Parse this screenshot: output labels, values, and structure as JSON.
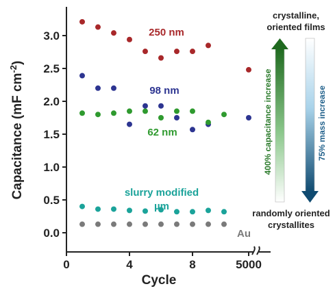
{
  "chart_data": {
    "type": "scatter",
    "xlabel": "Cycle",
    "ylabel": "Capacitance (mF cm",
    "ylabel_sup": "-2",
    "ylabel_close": ")",
    "x_ticks": [
      "0",
      "4",
      "8",
      "5000"
    ],
    "y_ticks": [
      "0.0",
      "0.5",
      "1.0",
      "1.5",
      "2.0",
      "2.5",
      "3.0"
    ],
    "xlim": [
      0,
      10
    ],
    "ylim": [
      0,
      3.3
    ],
    "series": [
      {
        "label_lines": [
          "250 nm"
        ],
        "color": "#a8282a",
        "x": [
          1,
          2,
          3,
          4,
          5,
          6,
          7,
          8,
          9
        ],
        "y": [
          3.21,
          3.13,
          3.04,
          2.94,
          2.76,
          2.66,
          2.76,
          2.76,
          2.85
        ],
        "x_5000": 2.48
      },
      {
        "label_lines": [
          "98 nm"
        ],
        "color": "#2d3591",
        "x": [
          1,
          2,
          3,
          4,
          5,
          6,
          7,
          8,
          9
        ],
        "y": [
          2.39,
          2.2,
          2.2,
          1.65,
          1.93,
          1.93,
          1.75,
          1.57,
          1.65
        ],
        "x_5000": 1.75
      },
      {
        "label_lines": [
          "62 nm"
        ],
        "color": "#2f9a2f",
        "x": [
          1,
          2,
          3,
          4,
          5,
          6,
          7,
          8,
          9,
          10
        ],
        "y": [
          1.82,
          1.8,
          1.82,
          1.85,
          1.85,
          1.75,
          1.85,
          1.85,
          1.68,
          1.8
        ],
        "x_5000": null
      },
      {
        "label_lines": [
          "slurry modified",
          "µm"
        ],
        "color": "#1ba39a",
        "x": [
          1,
          2,
          3,
          4,
          5,
          6,
          7,
          8,
          9,
          10
        ],
        "y": [
          0.4,
          0.36,
          0.36,
          0.34,
          0.33,
          0.35,
          0.32,
          0.32,
          0.34,
          0.32
        ],
        "x_5000": null
      },
      {
        "label_lines": [
          "Au"
        ],
        "color": "#7a7a7a",
        "x": [
          1,
          2,
          3,
          4,
          5,
          6,
          7,
          8,
          9,
          10
        ],
        "y": [
          0.13,
          0.13,
          0.13,
          0.13,
          0.13,
          0.13,
          0.13,
          0.13,
          0.13,
          0.13
        ],
        "x_5000": null
      }
    ],
    "annotations": {
      "top_text": [
        "crystalline,",
        "oriented films"
      ],
      "bottom_text": [
        "randomly oriented",
        "crystallites"
      ],
      "green_arrow_label": "400% capacitance increase",
      "blue_arrow_label": "75% mass increase",
      "green_color": "#2a7a2a",
      "blue_color": "#1f5f8a"
    }
  }
}
